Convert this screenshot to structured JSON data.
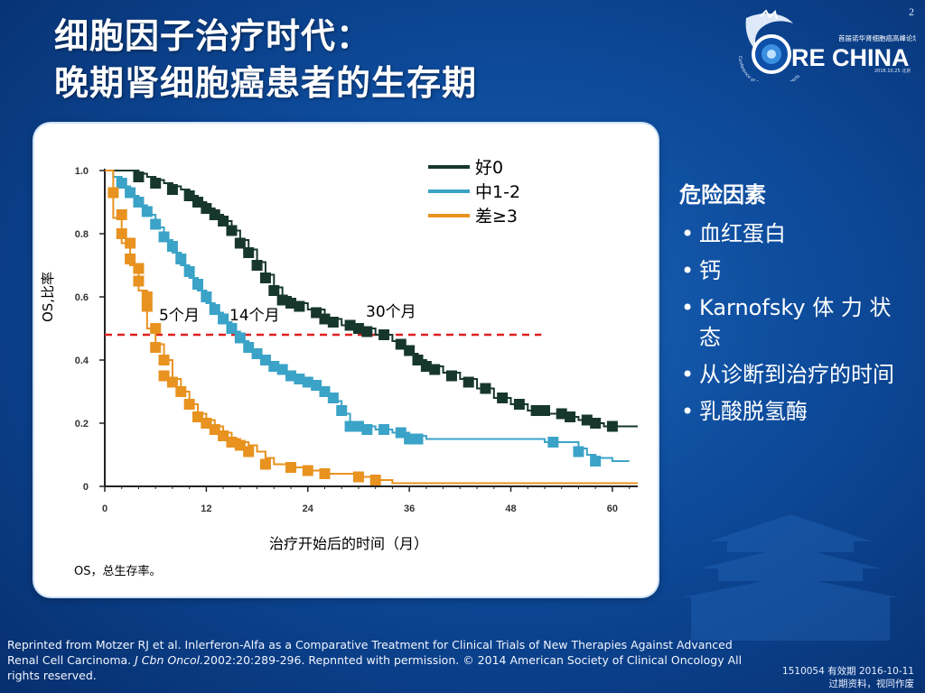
{
  "page_number": "2",
  "title": {
    "line1": "细胞因子治疗时代：",
    "line2": "晚期肾细胞癌患者的生存期"
  },
  "logo": {
    "text": "CORE CHINA",
    "subtitle": "首届诺华肾细胞癌高峰论坛",
    "arc_text": "Conference of Renal Cancer Experts in China",
    "date": "2016.10.25 北京"
  },
  "risk_factors": {
    "title": "危险因素",
    "items": [
      "血红蛋白",
      "钙",
      "Karnofsky 体 力 状态",
      "从诊断到治疗的时间",
      "乳酸脱氢酶"
    ]
  },
  "footnote": "OS，总生存率。",
  "citation": {
    "part1": "Reprinted from Motzer RJ et al. Inlerferon-Alfa as a Comparative Treatment for Clinical Trials of New Therapies Against Advanced Renal Cell Carcinoma. ",
    "journal": "J Cbn Oncol.",
    "part2": "2002:20:289-296. Repnnted with permission. © 2014 American Society of Clinical Oncology All rights reserved."
  },
  "validity": {
    "line1": "1510054  有效期 2016-10-11",
    "line2": "过期资料，视同作废"
  },
  "chart_data": {
    "type": "line",
    "xlabel": "治疗开始后的时间（月）",
    "ylabel": "OS,比率",
    "xlim": [
      0,
      63
    ],
    "ylim": [
      0,
      1.0
    ],
    "x_ticks": [
      0,
      12,
      24,
      36,
      48,
      60
    ],
    "x_tick_labels": [
      "0",
      "12",
      "24",
      "36",
      "48",
      "60"
    ],
    "y_ticks": [
      0,
      0.2,
      0.4,
      0.6,
      0.8,
      1.0
    ],
    "y_tick_labels": [
      "0",
      "0.2",
      "0.4",
      "0.6",
      "0.8",
      "1.0"
    ],
    "legend_position": "top-right",
    "reference_line": {
      "y": 0.48,
      "x_end": 51.6,
      "color": "#e02020",
      "style": "dashed"
    },
    "annotations": [
      "5个月",
      "14个月",
      "30个月"
    ],
    "series": [
      {
        "name": "好0",
        "color": "#17372d",
        "points": [
          [
            0,
            1.0
          ],
          [
            3,
            1.0
          ],
          [
            4,
            0.99
          ],
          [
            5,
            0.98
          ],
          [
            6,
            0.97
          ],
          [
            7,
            0.96
          ],
          [
            8,
            0.95
          ],
          [
            9,
            0.94
          ],
          [
            10,
            0.92
          ],
          [
            11,
            0.9
          ],
          [
            12,
            0.88
          ],
          [
            13,
            0.86
          ],
          [
            14,
            0.84
          ],
          [
            15,
            0.81
          ],
          [
            16,
            0.78
          ],
          [
            17,
            0.75
          ],
          [
            18,
            0.71
          ],
          [
            19,
            0.67
          ],
          [
            20,
            0.63
          ],
          [
            21,
            0.6
          ],
          [
            22,
            0.58
          ],
          [
            24,
            0.56
          ],
          [
            26,
            0.53
          ],
          [
            28,
            0.51
          ],
          [
            30,
            0.5
          ],
          [
            32,
            0.48
          ],
          [
            34,
            0.46
          ],
          [
            35,
            0.44
          ],
          [
            36,
            0.42
          ],
          [
            37,
            0.4
          ],
          [
            38,
            0.38
          ],
          [
            40,
            0.36
          ],
          [
            42,
            0.34
          ],
          [
            44,
            0.31
          ],
          [
            46,
            0.28
          ],
          [
            48,
            0.26
          ],
          [
            50,
            0.24
          ],
          [
            52,
            0.23
          ],
          [
            54,
            0.22
          ],
          [
            56,
            0.21
          ],
          [
            58,
            0.2
          ],
          [
            59,
            0.19
          ],
          [
            60,
            0.19
          ],
          [
            63,
            0.19
          ]
        ],
        "markers": [
          [
            4,
            0.98
          ],
          [
            6,
            0.96
          ],
          [
            8,
            0.94
          ],
          [
            10,
            0.92
          ],
          [
            11,
            0.9
          ],
          [
            12,
            0.88
          ],
          [
            13,
            0.86
          ],
          [
            14,
            0.84
          ],
          [
            15,
            0.81
          ],
          [
            16,
            0.77
          ],
          [
            17,
            0.74
          ],
          [
            18,
            0.7
          ],
          [
            19,
            0.66
          ],
          [
            20,
            0.62
          ],
          [
            21,
            0.59
          ],
          [
            22,
            0.58
          ],
          [
            23,
            0.57
          ],
          [
            25,
            0.55
          ],
          [
            26,
            0.53
          ],
          [
            27,
            0.52
          ],
          [
            29,
            0.51
          ],
          [
            30,
            0.5
          ],
          [
            31,
            0.49
          ],
          [
            33,
            0.48
          ],
          [
            35,
            0.45
          ],
          [
            36,
            0.43
          ],
          [
            37,
            0.4
          ],
          [
            38,
            0.38
          ],
          [
            39,
            0.37
          ],
          [
            41,
            0.35
          ],
          [
            43,
            0.33
          ],
          [
            45,
            0.31
          ],
          [
            47,
            0.28
          ],
          [
            49,
            0.26
          ],
          [
            51,
            0.24
          ],
          [
            52,
            0.24
          ],
          [
            54,
            0.23
          ],
          [
            55,
            0.22
          ],
          [
            57,
            0.21
          ],
          [
            58,
            0.2
          ],
          [
            60,
            0.19
          ]
        ]
      },
      {
        "name": "中1-2",
        "color": "#3aa3c7",
        "points": [
          [
            0,
            1.0
          ],
          [
            1,
            0.98
          ],
          [
            2,
            0.95
          ],
          [
            3,
            0.92
          ],
          [
            4,
            0.89
          ],
          [
            5,
            0.86
          ],
          [
            6,
            0.82
          ],
          [
            7,
            0.78
          ],
          [
            8,
            0.74
          ],
          [
            9,
            0.7
          ],
          [
            10,
            0.66
          ],
          [
            11,
            0.62
          ],
          [
            12,
            0.58
          ],
          [
            13,
            0.55
          ],
          [
            14,
            0.52
          ],
          [
            15,
            0.49
          ],
          [
            16,
            0.46
          ],
          [
            17,
            0.43
          ],
          [
            18,
            0.41
          ],
          [
            19,
            0.39
          ],
          [
            20,
            0.37
          ],
          [
            21,
            0.36
          ],
          [
            22,
            0.35
          ],
          [
            23,
            0.34
          ],
          [
            24,
            0.33
          ],
          [
            25,
            0.31
          ],
          [
            26,
            0.29
          ],
          [
            27,
            0.27
          ],
          [
            28,
            0.23
          ],
          [
            29,
            0.2
          ],
          [
            30,
            0.19
          ],
          [
            32,
            0.18
          ],
          [
            34,
            0.17
          ],
          [
            36,
            0.16
          ],
          [
            38,
            0.15
          ],
          [
            40,
            0.15
          ],
          [
            44,
            0.15
          ],
          [
            48,
            0.15
          ],
          [
            52,
            0.14
          ],
          [
            54,
            0.14
          ],
          [
            56,
            0.12
          ],
          [
            57,
            0.1
          ],
          [
            58,
            0.09
          ],
          [
            60,
            0.08
          ],
          [
            62,
            0.08
          ]
        ],
        "markers": [
          [
            2,
            0.96
          ],
          [
            3,
            0.93
          ],
          [
            4,
            0.9
          ],
          [
            5,
            0.87
          ],
          [
            6,
            0.83
          ],
          [
            7,
            0.79
          ],
          [
            8,
            0.76
          ],
          [
            9,
            0.72
          ],
          [
            10,
            0.68
          ],
          [
            11,
            0.64
          ],
          [
            12,
            0.6
          ],
          [
            13,
            0.56
          ],
          [
            14,
            0.53
          ],
          [
            15,
            0.5
          ],
          [
            16,
            0.47
          ],
          [
            17,
            0.44
          ],
          [
            18,
            0.42
          ],
          [
            19,
            0.4
          ],
          [
            20,
            0.38
          ],
          [
            21,
            0.37
          ],
          [
            22,
            0.35
          ],
          [
            23,
            0.34
          ],
          [
            24,
            0.33
          ],
          [
            25,
            0.32
          ],
          [
            26,
            0.3
          ],
          [
            27,
            0.28
          ],
          [
            28,
            0.24
          ],
          [
            29,
            0.19
          ],
          [
            30,
            0.19
          ],
          [
            31,
            0.18
          ],
          [
            33,
            0.18
          ],
          [
            35,
            0.17
          ],
          [
            36,
            0.15
          ],
          [
            37,
            0.15
          ],
          [
            53,
            0.14
          ],
          [
            56,
            0.11
          ],
          [
            58,
            0.08
          ]
        ]
      },
      {
        "name": "差≥3",
        "color": "#e8921f",
        "points": [
          [
            0,
            1.0
          ],
          [
            1,
            0.85
          ],
          [
            2,
            0.77
          ],
          [
            3,
            0.7
          ],
          [
            4,
            0.62
          ],
          [
            5,
            0.5
          ],
          [
            6,
            0.45
          ],
          [
            7,
            0.4
          ],
          [
            8,
            0.34
          ],
          [
            9,
            0.3
          ],
          [
            10,
            0.26
          ],
          [
            11,
            0.23
          ],
          [
            12,
            0.21
          ],
          [
            13,
            0.19
          ],
          [
            14,
            0.17
          ],
          [
            15,
            0.15
          ],
          [
            16,
            0.14
          ],
          [
            17,
            0.13
          ],
          [
            18,
            0.11
          ],
          [
            19,
            0.09
          ],
          [
            20,
            0.07
          ],
          [
            22,
            0.06
          ],
          [
            24,
            0.05
          ],
          [
            26,
            0.04
          ],
          [
            28,
            0.04
          ],
          [
            30,
            0.03
          ],
          [
            32,
            0.02
          ],
          [
            34,
            0.01
          ],
          [
            36,
            0.01
          ],
          [
            40,
            0.01
          ],
          [
            48,
            0.01
          ],
          [
            60,
            0.01
          ],
          [
            63,
            0.01
          ]
        ],
        "markers": [
          [
            1,
            0.93
          ],
          [
            2,
            0.86
          ],
          [
            2,
            0.8
          ],
          [
            3,
            0.77
          ],
          [
            3,
            0.72
          ],
          [
            4,
            0.69
          ],
          [
            4,
            0.65
          ],
          [
            5,
            0.6
          ],
          [
            5,
            0.57
          ],
          [
            6,
            0.5
          ],
          [
            6,
            0.44
          ],
          [
            7,
            0.4
          ],
          [
            7,
            0.35
          ],
          [
            8,
            0.33
          ],
          [
            9,
            0.3
          ],
          [
            10,
            0.26
          ],
          [
            11,
            0.22
          ],
          [
            12,
            0.2
          ],
          [
            13,
            0.18
          ],
          [
            14,
            0.16
          ],
          [
            15,
            0.14
          ],
          [
            16,
            0.13
          ],
          [
            17,
            0.11
          ],
          [
            19,
            0.07
          ],
          [
            22,
            0.06
          ],
          [
            24,
            0.05
          ],
          [
            26,
            0.04
          ],
          [
            30,
            0.03
          ],
          [
            32,
            0.02
          ]
        ]
      }
    ]
  }
}
